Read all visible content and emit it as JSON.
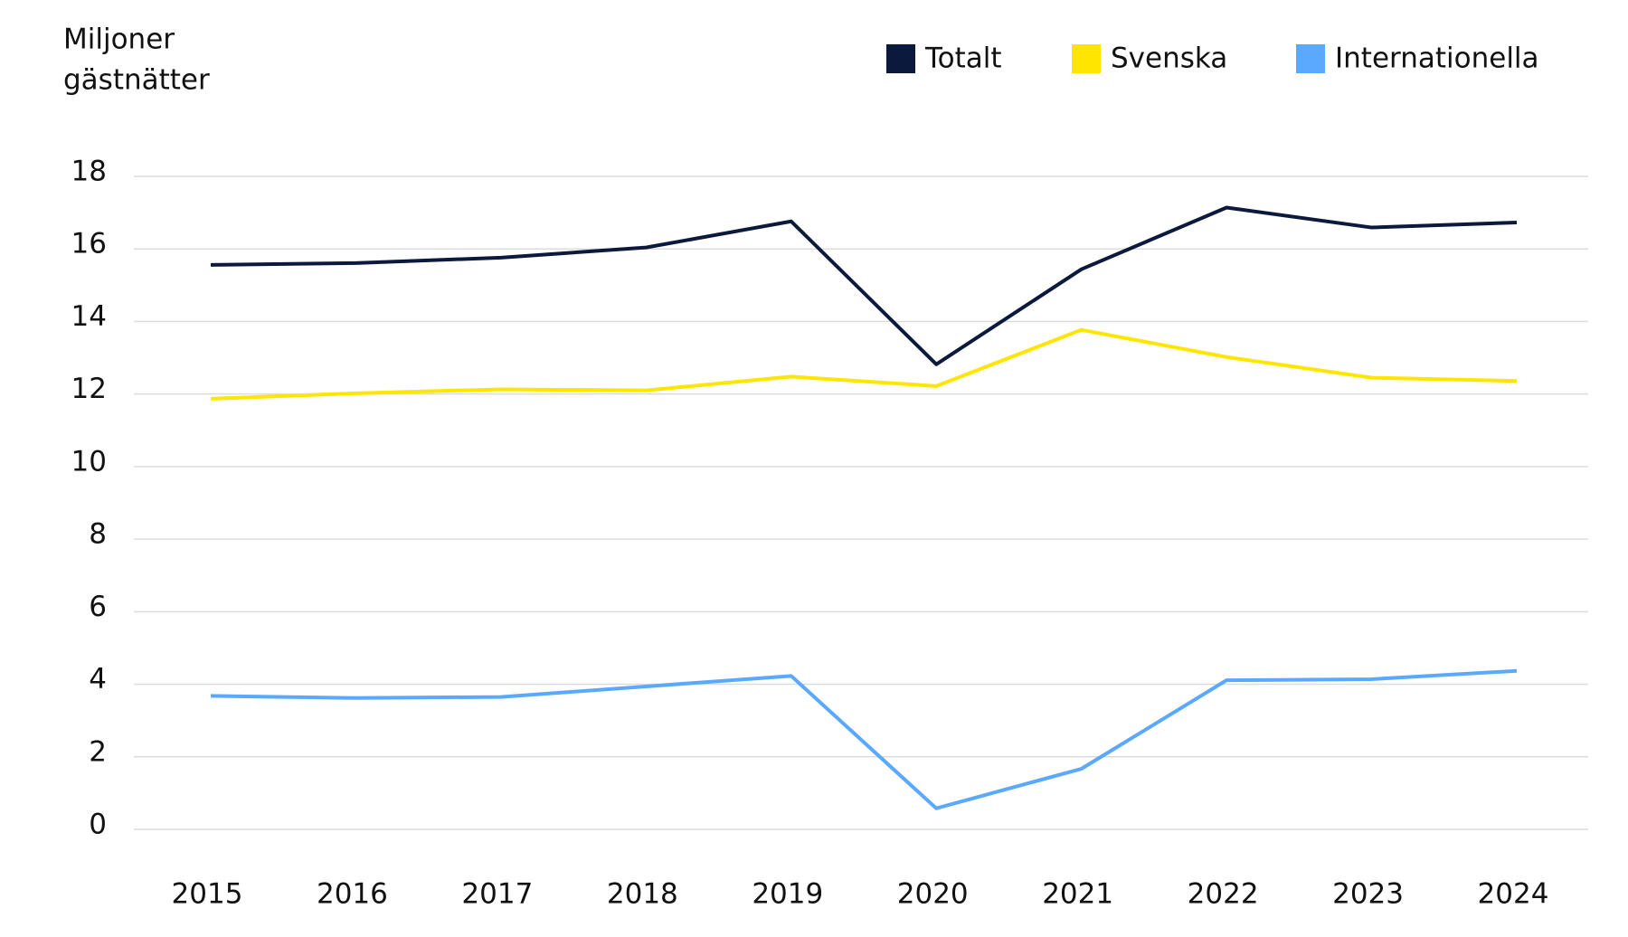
{
  "chart_data": {
    "type": "line",
    "y_label": [
      "Miljoner",
      "gästnätter"
    ],
    "categories": [
      "2015",
      "2016",
      "2017",
      "2018",
      "2019",
      "2020",
      "2021",
      "2022",
      "2023",
      "2024"
    ],
    "series": [
      {
        "name": "Totalt",
        "color": "#0b1a3c",
        "values": [
          15.56,
          15.61,
          15.76,
          16.04,
          16.76,
          12.82,
          15.44,
          17.14,
          16.59,
          16.73
        ]
      },
      {
        "name": "Svenska",
        "color": "#ffe600",
        "values": [
          11.87,
          12.02,
          12.13,
          12.1,
          12.48,
          12.22,
          13.77,
          13.02,
          12.45,
          12.36
        ]
      },
      {
        "name": "Internationella",
        "color": "#5aa9ff",
        "values": [
          3.68,
          3.62,
          3.65,
          3.94,
          4.23,
          0.58,
          1.67,
          4.11,
          4.14,
          4.37
        ]
      }
    ],
    "ylim": [
      0,
      18
    ],
    "yticks": [
      0,
      2,
      4,
      6,
      8,
      10,
      12,
      14,
      16,
      18
    ],
    "grid": true,
    "legend": "top-right"
  }
}
